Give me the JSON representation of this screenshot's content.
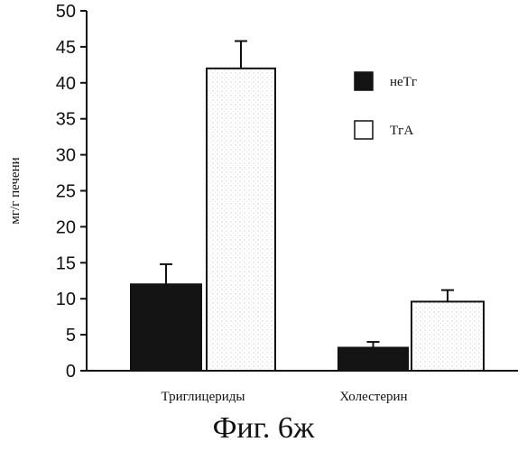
{
  "chart_data": {
    "type": "bar",
    "categories": [
      "Триглицериды",
      "Холестерин"
    ],
    "series": [
      {
        "name": "неТг",
        "values": [
          12,
          3.2
        ],
        "errors": [
          2.8,
          0.8
        ],
        "color": "#141414"
      },
      {
        "name": "ТгА",
        "values": [
          42,
          9.6
        ],
        "errors": [
          3.8,
          1.6
        ],
        "color": "#ffffff"
      }
    ],
    "ylabel": "мг/г печени",
    "xlabel": "",
    "ylim": [
      0,
      50
    ],
    "yticks": [
      0,
      5,
      10,
      15,
      20,
      25,
      30,
      35,
      40,
      45,
      50
    ],
    "grid": false,
    "legend": "top-right",
    "caption": "Фиг. 6ж"
  }
}
